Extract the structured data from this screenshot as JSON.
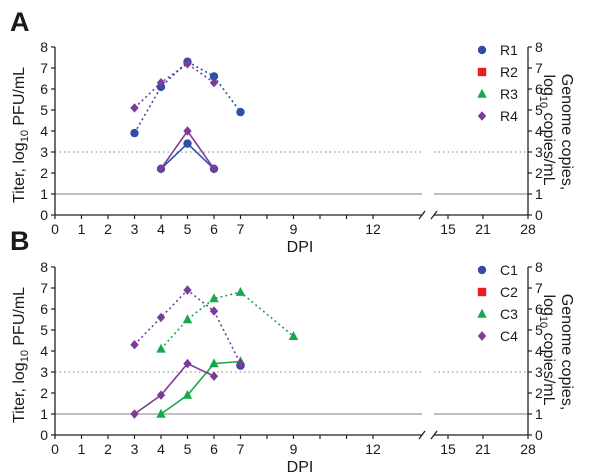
{
  "chart_data": [
    {
      "type": "line",
      "panel_label": "A",
      "xlabel": "DPI",
      "ylabel_left_prefix": "Titer, log",
      "ylabel_left_sub": "10",
      "ylabel_left_suffix": " PFU/mL",
      "ylabel_right_line1": "Genome copies,",
      "ylabel_right_line2_prefix": "log",
      "ylabel_right_line2_sub": "10",
      "ylabel_right_line2_suffix": " copies/mL",
      "x_ticks_left": [
        "0",
        "1",
        "2",
        "3",
        "4",
        "5",
        "6",
        "7",
        "",
        "9",
        "",
        "",
        "12"
      ],
      "x_ticks_right": [
        "15",
        "21",
        "28"
      ],
      "ylim": [
        0,
        8
      ],
      "y_ticks": [
        "0",
        "1",
        "2",
        "3",
        "4",
        "5",
        "6",
        "7",
        "8"
      ],
      "reference_lines": [
        {
          "y": 1,
          "style": "solid",
          "color": "#9a9a9a"
        },
        {
          "y": 3,
          "style": "dotted",
          "color": "#9a9a9a"
        }
      ],
      "legend": [
        {
          "name": "R1",
          "color": "#2e4fa8",
          "marker": "circle"
        },
        {
          "name": "R2",
          "color": "#e8201f",
          "marker": "square"
        },
        {
          "name": "R3",
          "color": "#16a84b",
          "marker": "triangle"
        },
        {
          "name": "R4",
          "color": "#7b3c97",
          "marker": "diamond"
        }
      ],
      "series": [
        {
          "name": "R1",
          "measure": "titer",
          "color": "#2e4fa8",
          "marker": "circle",
          "x": [
            4,
            5,
            6
          ],
          "y": [
            2.2,
            3.4,
            2.2
          ]
        },
        {
          "name": "R4",
          "measure": "titer",
          "color": "#7b3c97",
          "marker": "diamond",
          "x": [
            4,
            5,
            6
          ],
          "y": [
            2.2,
            4.0,
            2.2
          ]
        },
        {
          "name": "R1",
          "measure": "genome",
          "color": "#2e4fa8",
          "marker": "circle",
          "x": [
            3,
            4,
            5,
            6,
            7
          ],
          "y": [
            3.9,
            6.1,
            7.3,
            6.6,
            4.9
          ]
        },
        {
          "name": "R4",
          "measure": "genome",
          "color": "#7b3c97",
          "marker": "diamond",
          "x": [
            3,
            4,
            5,
            6
          ],
          "y": [
            5.1,
            6.3,
            7.2,
            6.3
          ]
        }
      ]
    },
    {
      "type": "line",
      "panel_label": "B",
      "xlabel": "DPI",
      "ylabel_left_prefix": "Titer, log",
      "ylabel_left_sub": "10",
      "ylabel_left_suffix": " PFU/mL",
      "ylabel_right_line1": "Genome copies,",
      "ylabel_right_line2_prefix": "log",
      "ylabel_right_line2_sub": "10",
      "ylabel_right_line2_suffix": " copies/mL",
      "x_ticks_left": [
        "0",
        "1",
        "2",
        "3",
        "4",
        "5",
        "6",
        "7",
        "",
        "9",
        "",
        "",
        "12"
      ],
      "x_ticks_right": [
        "15",
        "21",
        "28"
      ],
      "ylim": [
        0,
        8
      ],
      "y_ticks": [
        "0",
        "1",
        "2",
        "3",
        "4",
        "5",
        "6",
        "7",
        "8"
      ],
      "reference_lines": [
        {
          "y": 1,
          "style": "solid",
          "color": "#9a9a9a"
        },
        {
          "y": 3,
          "style": "dotted",
          "color": "#9a9a9a"
        }
      ],
      "legend": [
        {
          "name": "C1",
          "color": "#2e4fa8",
          "marker": "circle"
        },
        {
          "name": "C2",
          "color": "#e8201f",
          "marker": "square"
        },
        {
          "name": "C3",
          "color": "#16a84b",
          "marker": "triangle"
        },
        {
          "name": "C4",
          "color": "#7b3c97",
          "marker": "diamond"
        }
      ],
      "series": [
        {
          "name": "C3",
          "measure": "titer",
          "color": "#16a84b",
          "marker": "triangle",
          "x": [
            4,
            5,
            6,
            7
          ],
          "y": [
            1.0,
            1.9,
            3.4,
            3.5
          ]
        },
        {
          "name": "C4",
          "measure": "titer",
          "color": "#7b3c97",
          "marker": "diamond",
          "x": [
            3,
            4,
            5,
            6
          ],
          "y": [
            1.0,
            1.9,
            3.4,
            2.8
          ]
        },
        {
          "name": "C1",
          "measure": "titer",
          "color": "#2e4fa8",
          "marker": "circle",
          "x": [
            7
          ],
          "y": [
            3.3
          ]
        },
        {
          "name": "C3",
          "measure": "genome",
          "color": "#16a84b",
          "marker": "triangle",
          "x": [
            4,
            5,
            6,
            7,
            9
          ],
          "y": [
            4.1,
            5.5,
            6.5,
            6.8,
            4.7
          ]
        },
        {
          "name": "C4",
          "measure": "genome",
          "color": "#7b3c97",
          "marker": "diamond",
          "x": [
            3,
            4,
            5,
            6,
            7
          ],
          "y": [
            4.3,
            5.6,
            6.9,
            5.9,
            3.4
          ]
        }
      ]
    }
  ]
}
